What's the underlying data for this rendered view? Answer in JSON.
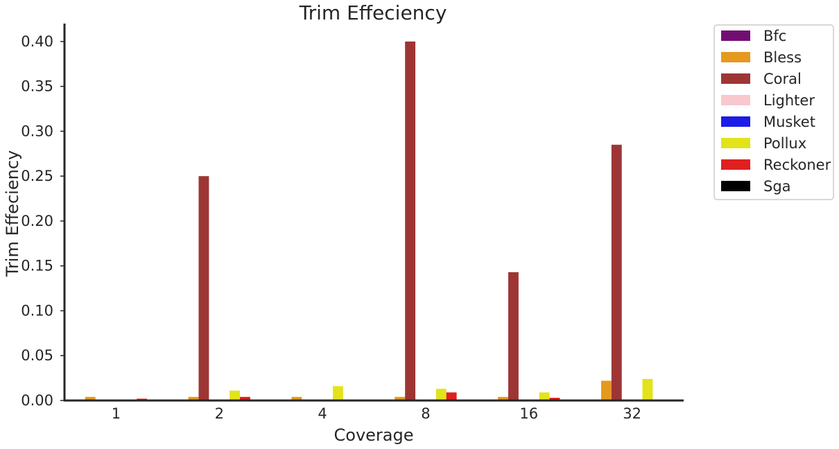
{
  "chart_data": {
    "type": "bar",
    "title": "Trim Effeciency",
    "xlabel": "Coverage",
    "ylabel": "Trim Effeciency",
    "categories": [
      "1",
      "2",
      "4",
      "8",
      "16",
      "32"
    ],
    "ylim": [
      0,
      0.42
    ],
    "yticks": [
      "0.00",
      "0.05",
      "0.10",
      "0.15",
      "0.20",
      "0.25",
      "0.30",
      "0.35",
      "0.40"
    ],
    "grid": false,
    "legend_position": "outside-top-right",
    "series": [
      {
        "name": "Bfc",
        "color": "#720e72",
        "values": [
          0,
          0,
          0,
          0,
          0,
          0
        ]
      },
      {
        "name": "Bless",
        "color": "#e5991f",
        "values": [
          0.004,
          0.004,
          0.004,
          0.004,
          0.004,
          0.022
        ]
      },
      {
        "name": "Coral",
        "color": "#9e3535",
        "values": [
          0,
          0.25,
          0,
          0.4,
          0.143,
          0.285
        ]
      },
      {
        "name": "Lighter",
        "color": "#f9c8cf",
        "values": [
          0,
          0,
          0,
          0,
          0,
          0
        ]
      },
      {
        "name": "Musket",
        "color": "#1c1ce8",
        "values": [
          0,
          0,
          0,
          0,
          0,
          0
        ]
      },
      {
        "name": "Pollux",
        "color": "#e3e31c",
        "values": [
          0,
          0.011,
          0.016,
          0.013,
          0.009,
          0.024
        ]
      },
      {
        "name": "Reckoner",
        "color": "#e01f1f",
        "values": [
          0.002,
          0.004,
          0,
          0.009,
          0.003,
          0
        ]
      },
      {
        "name": "Sga",
        "color": "#000000",
        "values": [
          0,
          0,
          0,
          0,
          0,
          0
        ]
      }
    ]
  }
}
